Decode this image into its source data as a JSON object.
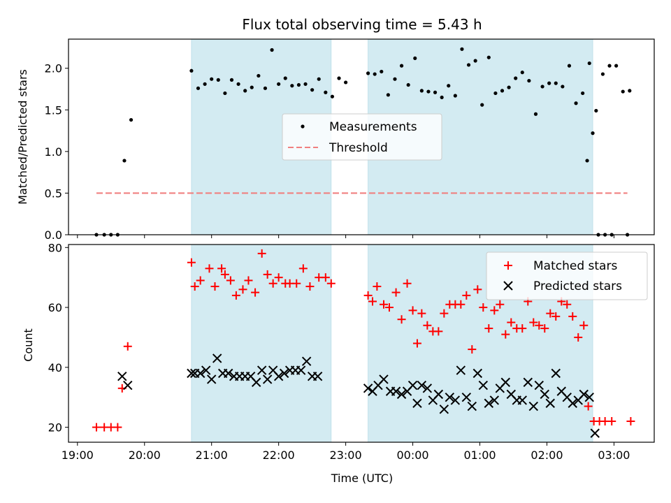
{
  "chart_data": [
    {
      "type": "scatter",
      "title": "Flux total observing time = 5.43 h",
      "xlabel": "",
      "ylabel": "Matched/Predicted stars",
      "ylim": [
        0,
        2.35
      ],
      "yticks": [
        0,
        0.5,
        1.0,
        1.5,
        2.0
      ],
      "ytick_labels": [
        "0.0",
        "0.5",
        "1.0",
        "1.5",
        "2.0"
      ],
      "legend": [
        "Measurements",
        "Threshold"
      ],
      "legend_position": "center",
      "threshold": 0.5,
      "threshold_range": [
        "19:17",
        "03:12"
      ],
      "shaded_periods": [
        [
          "20:42",
          "22:47"
        ],
        [
          "23:20",
          "02:41"
        ]
      ],
      "series": [
        {
          "name": "Measurements",
          "color": "#000000",
          "points": [
            [
              "19:17",
              0
            ],
            [
              "19:24",
              0
            ],
            [
              "19:30",
              0
            ],
            [
              "19:36",
              0
            ],
            [
              "19:42",
              0.89
            ],
            [
              "19:48",
              1.38
            ],
            [
              "20:42",
              1.97
            ],
            [
              "20:48",
              1.76
            ],
            [
              "20:54",
              1.81
            ],
            [
              "21:00",
              1.87
            ],
            [
              "21:06",
              1.86
            ],
            [
              "21:12",
              1.7
            ],
            [
              "21:18",
              1.86
            ],
            [
              "21:24",
              1.81
            ],
            [
              "21:30",
              1.73
            ],
            [
              "21:36",
              1.77
            ],
            [
              "21:42",
              1.91
            ],
            [
              "21:48",
              1.76
            ],
            [
              "21:54",
              2.22
            ],
            [
              "22:00",
              1.81
            ],
            [
              "22:06",
              1.88
            ],
            [
              "22:12",
              1.79
            ],
            [
              "22:18",
              1.8
            ],
            [
              "22:24",
              1.81
            ],
            [
              "22:30",
              1.74
            ],
            [
              "22:36",
              1.87
            ],
            [
              "22:42",
              1.71
            ],
            [
              "22:48",
              1.66
            ],
            [
              "22:54",
              1.88
            ],
            [
              "23:00",
              1.83
            ],
            [
              "23:20",
              1.94
            ],
            [
              "23:26",
              1.93
            ],
            [
              "23:32",
              1.96
            ],
            [
              "23:38",
              1.68
            ],
            [
              "23:44",
              1.87
            ],
            [
              "23:50",
              2.03
            ],
            [
              "23:56",
              1.8
            ],
            [
              "00:02",
              2.12
            ],
            [
              "00:08",
              1.73
            ],
            [
              "00:14",
              1.72
            ],
            [
              "00:20",
              1.71
            ],
            [
              "00:26",
              1.65
            ],
            [
              "00:32",
              1.79
            ],
            [
              "00:38",
              1.67
            ],
            [
              "00:44",
              2.23
            ],
            [
              "00:50",
              2.04
            ],
            [
              "00:56",
              2.09
            ],
            [
              "01:02",
              1.56
            ],
            [
              "01:08",
              2.13
            ],
            [
              "01:14",
              1.7
            ],
            [
              "01:20",
              1.73
            ],
            [
              "01:26",
              1.77
            ],
            [
              "01:32",
              1.88
            ],
            [
              "01:38",
              1.95
            ],
            [
              "01:44",
              1.85
            ],
            [
              "01:50",
              1.45
            ],
            [
              "01:56",
              1.78
            ],
            [
              "02:02",
              1.82
            ],
            [
              "02:08",
              1.82
            ],
            [
              "02:14",
              1.78
            ],
            [
              "02:20",
              2.03
            ],
            [
              "02:26",
              1.58
            ],
            [
              "02:32",
              1.7
            ],
            [
              "02:38",
              2.06
            ],
            [
              "02:44",
              1.49
            ],
            [
              "02:50",
              1.93
            ],
            [
              "02:56",
              2.03
            ],
            [
              "03:02",
              2.03
            ],
            [
              "03:08",
              1.72
            ],
            [
              "03:14",
              1.73
            ],
            [
              "02:36",
              0.89
            ],
            [
              "02:41",
              1.22
            ],
            [
              "02:46",
              0
            ],
            [
              "02:52",
              0
            ],
            [
              "02:58",
              0
            ],
            [
              "03:12",
              0
            ]
          ]
        }
      ]
    },
    {
      "type": "scatter",
      "title": "",
      "xlabel": "Time (UTC)",
      "ylabel": "Count",
      "ylim": [
        15,
        81
      ],
      "yticks": [
        20,
        40,
        60,
        80
      ],
      "ytick_labels": [
        "20",
        "40",
        "60",
        "80"
      ],
      "xticks": [
        "19:00",
        "20:00",
        "21:00",
        "22:00",
        "23:00",
        "00:00",
        "01:00",
        "02:00",
        "03:00"
      ],
      "legend": [
        "Matched stars",
        "Predicted stars"
      ],
      "legend_position": "top-right",
      "shaded_periods": [
        [
          "20:42",
          "22:47"
        ],
        [
          "23:20",
          "02:41"
        ]
      ],
      "series": [
        {
          "name": "Matched stars",
          "color": "#ff0000",
          "marker": "plus",
          "points": [
            [
              "19:17",
              20
            ],
            [
              "19:24",
              20
            ],
            [
              "19:30",
              20
            ],
            [
              "19:36",
              20
            ],
            [
              "19:40",
              33
            ],
            [
              "19:45",
              47
            ],
            [
              "20:42",
              75
            ],
            [
              "20:45",
              67
            ],
            [
              "20:50",
              69
            ],
            [
              "20:58",
              73
            ],
            [
              "21:03",
              67
            ],
            [
              "21:09",
              73
            ],
            [
              "21:12",
              71
            ],
            [
              "21:17",
              69
            ],
            [
              "21:22",
              64
            ],
            [
              "21:28",
              66
            ],
            [
              "21:33",
              69
            ],
            [
              "21:39",
              65
            ],
            [
              "21:45",
              78
            ],
            [
              "21:50",
              71
            ],
            [
              "21:55",
              68
            ],
            [
              "22:00",
              70
            ],
            [
              "22:06",
              68
            ],
            [
              "22:10",
              68
            ],
            [
              "22:16",
              68
            ],
            [
              "22:22",
              73
            ],
            [
              "22:28",
              67
            ],
            [
              "22:36",
              70
            ],
            [
              "22:42",
              70
            ],
            [
              "22:47",
              68
            ],
            [
              "23:20",
              64
            ],
            [
              "23:24",
              62
            ],
            [
              "23:28",
              67
            ],
            [
              "23:34",
              61
            ],
            [
              "23:39",
              60
            ],
            [
              "23:45",
              65
            ],
            [
              "23:50",
              56
            ],
            [
              "23:55",
              68
            ],
            [
              "00:00",
              59
            ],
            [
              "00:04",
              48
            ],
            [
              "00:08",
              58
            ],
            [
              "00:13",
              54
            ],
            [
              "00:18",
              52
            ],
            [
              "00:23",
              52
            ],
            [
              "00:28",
              58
            ],
            [
              "00:33",
              61
            ],
            [
              "00:38",
              61
            ],
            [
              "00:43",
              61
            ],
            [
              "00:48",
              64
            ],
            [
              "00:53",
              46
            ],
            [
              "00:58",
              66
            ],
            [
              "01:03",
              60
            ],
            [
              "01:08",
              53
            ],
            [
              "01:13",
              59
            ],
            [
              "01:18",
              61
            ],
            [
              "01:23",
              51
            ],
            [
              "01:28",
              55
            ],
            [
              "01:33",
              53
            ],
            [
              "01:38",
              53
            ],
            [
              "01:43",
              62
            ],
            [
              "01:48",
              55
            ],
            [
              "01:53",
              54
            ],
            [
              "01:58",
              53
            ],
            [
              "02:03",
              58
            ],
            [
              "02:08",
              57
            ],
            [
              "02:13",
              62
            ],
            [
              "02:18",
              61
            ],
            [
              "02:23",
              57
            ],
            [
              "02:28",
              50
            ],
            [
              "02:33",
              54
            ],
            [
              "02:37",
              27
            ],
            [
              "02:42",
              22
            ],
            [
              "02:47",
              22
            ],
            [
              "02:52",
              22
            ],
            [
              "02:58",
              22
            ],
            [
              "03:15",
              22
            ]
          ]
        },
        {
          "name": "Predicted stars",
          "color": "#000000",
          "marker": "x",
          "points": [
            [
              "19:40",
              37
            ],
            [
              "19:45",
              34
            ],
            [
              "20:42",
              38
            ],
            [
              "20:45",
              38
            ],
            [
              "20:50",
              38
            ],
            [
              "20:55",
              39
            ],
            [
              "21:00",
              36
            ],
            [
              "21:05",
              43
            ],
            [
              "21:10",
              38
            ],
            [
              "21:15",
              38
            ],
            [
              "21:20",
              37
            ],
            [
              "21:25",
              37
            ],
            [
              "21:30",
              37
            ],
            [
              "21:35",
              37
            ],
            [
              "21:40",
              35
            ],
            [
              "21:45",
              39
            ],
            [
              "21:50",
              36
            ],
            [
              "21:55",
              39
            ],
            [
              "22:00",
              37
            ],
            [
              "22:05",
              38
            ],
            [
              "22:10",
              39
            ],
            [
              "22:15",
              39
            ],
            [
              "22:20",
              39
            ],
            [
              "22:25",
              42
            ],
            [
              "22:30",
              37
            ],
            [
              "22:35",
              37
            ],
            [
              "23:20",
              33
            ],
            [
              "23:24",
              32
            ],
            [
              "23:29",
              34
            ],
            [
              "23:34",
              36
            ],
            [
              "23:40",
              32
            ],
            [
              "23:45",
              32
            ],
            [
              "23:50",
              31
            ],
            [
              "23:55",
              32
            ],
            [
              "00:00",
              34
            ],
            [
              "00:04",
              28
            ],
            [
              "00:08",
              34
            ],
            [
              "00:13",
              33
            ],
            [
              "00:18",
              29
            ],
            [
              "00:23",
              31
            ],
            [
              "00:28",
              26
            ],
            [
              "00:33",
              30
            ],
            [
              "00:38",
              29
            ],
            [
              "00:43",
              39
            ],
            [
              "00:48",
              30
            ],
            [
              "00:53",
              27
            ],
            [
              "00:58",
              38
            ],
            [
              "01:03",
              34
            ],
            [
              "01:08",
              28
            ],
            [
              "01:13",
              29
            ],
            [
              "01:18",
              33
            ],
            [
              "01:23",
              35
            ],
            [
              "01:28",
              31
            ],
            [
              "01:33",
              29
            ],
            [
              "01:38",
              29
            ],
            [
              "01:43",
              35
            ],
            [
              "01:48",
              27
            ],
            [
              "01:53",
              34
            ],
            [
              "01:58",
              31
            ],
            [
              "02:03",
              28
            ],
            [
              "02:08",
              38
            ],
            [
              "02:13",
              32
            ],
            [
              "02:18",
              30
            ],
            [
              "02:23",
              28
            ],
            [
              "02:28",
              29
            ],
            [
              "02:33",
              31
            ],
            [
              "02:38",
              30
            ],
            [
              "02:43",
              18
            ]
          ]
        }
      ]
    }
  ],
  "colors": {
    "shade": "#d3ebf2",
    "threshold": "#f08080",
    "matched": "#ff0000",
    "predicted": "#000000"
  }
}
